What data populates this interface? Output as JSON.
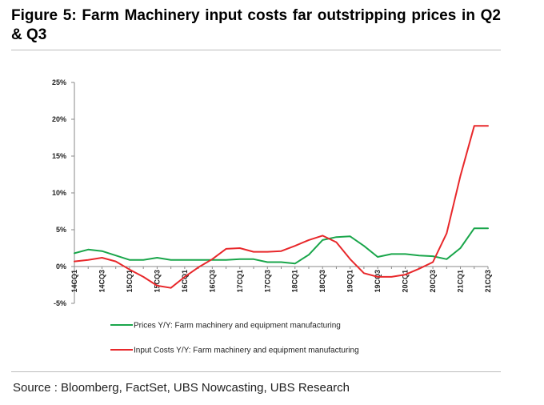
{
  "figure": {
    "title": "Figure 5: Farm Machinery input costs far outstripping prices in Q2 & Q3",
    "source": "Source : Bloomberg, FactSet, UBS Nowcasting, UBS Research"
  },
  "chart_data": {
    "type": "line",
    "title": "",
    "xlabel": "",
    "ylabel": "",
    "ylim": [
      -5,
      25
    ],
    "yticks": [
      "-5%",
      "0%",
      "5%",
      "10%",
      "15%",
      "20%",
      "25%"
    ],
    "x_tick_labels": [
      "14CQ1",
      "14CQ3",
      "15CQ1",
      "15CQ3",
      "16CQ1",
      "16CQ3",
      "17CQ1",
      "17CQ3",
      "18CQ1",
      "18CQ3",
      "19CQ1",
      "19CQ3",
      "20CQ1",
      "20CQ3",
      "21CQ1",
      "21CQ3"
    ],
    "x": [
      "14CQ1",
      "14CQ2",
      "14CQ3",
      "14CQ4",
      "15CQ1",
      "15CQ2",
      "15CQ3",
      "15CQ4",
      "16CQ1",
      "16CQ2",
      "16CQ3",
      "16CQ4",
      "17CQ1",
      "17CQ2",
      "17CQ3",
      "17CQ4",
      "18CQ1",
      "18CQ2",
      "18CQ3",
      "18CQ4",
      "19CQ1",
      "19CQ2",
      "19CQ3",
      "19CQ4",
      "20CQ1",
      "20CQ2",
      "20CQ3",
      "20CQ4",
      "21CQ1",
      "21CQ2",
      "21CQ3"
    ],
    "series": [
      {
        "name": "Prices Y/Y: Farm machinery and equipment manufacturing",
        "color": "#1aa64b",
        "values": [
          1.8,
          2.3,
          2.1,
          1.5,
          0.9,
          0.9,
          1.2,
          0.9,
          0.9,
          0.9,
          0.9,
          0.9,
          1.0,
          1.0,
          0.6,
          0.6,
          0.4,
          1.6,
          3.6,
          4.0,
          4.1,
          2.8,
          1.3,
          1.7,
          1.7,
          1.5,
          1.4,
          1.0,
          2.5,
          5.2,
          5.2
        ]
      },
      {
        "name": "Input Costs Y/Y: Farm machinery and equipment manufacturing",
        "color": "#e8282b",
        "values": [
          0.7,
          0.9,
          1.2,
          0.7,
          -0.4,
          -1.4,
          -2.6,
          -2.9,
          -1.4,
          -0.1,
          1.0,
          2.4,
          2.5,
          2.0,
          2.0,
          2.1,
          2.8,
          3.6,
          4.2,
          3.3,
          1.0,
          -0.9,
          -1.4,
          -1.4,
          -1.1,
          -0.3,
          0.6,
          4.5,
          12.3,
          19.1,
          19.1
        ]
      }
    ],
    "legend": "bottom"
  }
}
